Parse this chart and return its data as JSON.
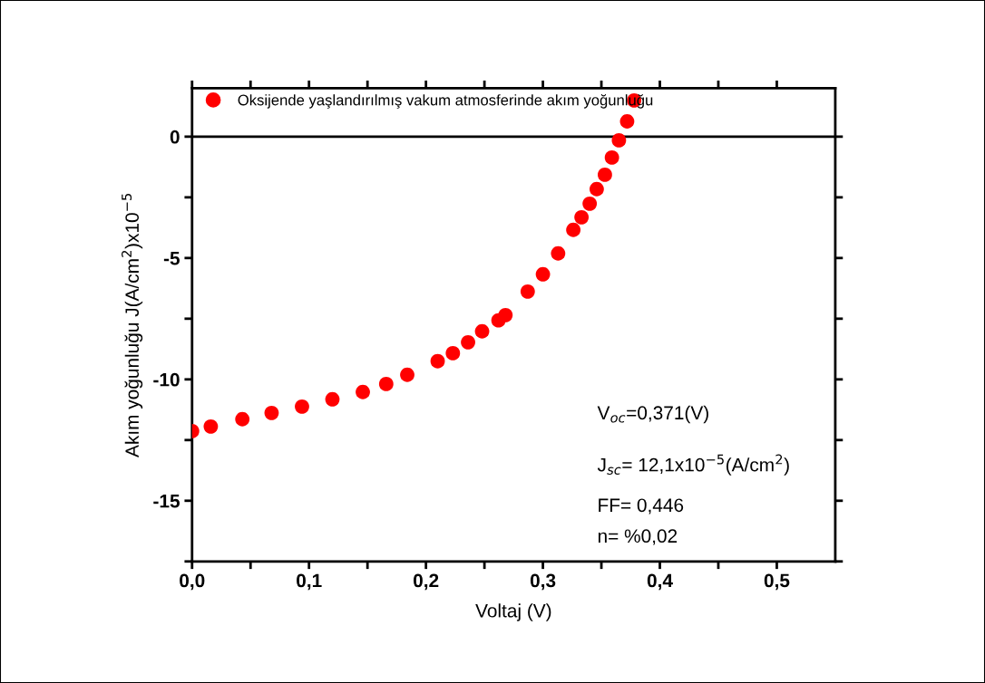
{
  "chart_data": {
    "type": "scatter",
    "xlabel": "Voltaj (V)",
    "ylabel": "Akım yoğunluğu J(A/cm$^{2}$)x10$^{−5}$",
    "x": [
      0,
      0.016,
      0.043,
      0.068,
      0.094,
      0.12,
      0.146,
      0.166,
      0.184,
      0.21,
      0.223,
      0.236,
      0.248,
      0.262,
      0.268,
      0.287,
      0.3,
      0.313,
      0.326,
      0.333,
      0.34,
      0.346,
      0.353,
      0.359,
      0.365,
      0.372,
      0.378
    ],
    "series": [
      {
        "name": "Oksijende yaşlandırılmış vakum atmosferinde akım yoğunluğu",
        "color": "#ff0000",
        "values": [
          -12.13,
          -11.94,
          -11.64,
          -11.38,
          -11.12,
          -10.82,
          -10.52,
          -10.19,
          -9.81,
          -9.25,
          -8.92,
          -8.47,
          -8.02,
          -7.57,
          -7.35,
          -6.38,
          -5.67,
          -4.81,
          -3.84,
          -3.32,
          -2.76,
          -2.16,
          -1.57,
          -0.86,
          -0.15,
          0.63,
          1.49
        ]
      }
    ],
    "marker": "circle",
    "legend": "top left",
    "grid": false,
    "xlim": [
      0,
      0.55
    ],
    "ylim": [
      -17.5,
      2
    ],
    "xticks": [
      {
        "value": 0,
        "label": "0,0"
      },
      {
        "value": 0.05,
        "label": null
      },
      {
        "value": 0.1,
        "label": "0,1"
      },
      {
        "value": 0.15,
        "label": null
      },
      {
        "value": 0.2,
        "label": "0,2"
      },
      {
        "value": 0.25,
        "label": null
      },
      {
        "value": 0.3,
        "label": "0,3"
      },
      {
        "value": 0.35,
        "label": null
      },
      {
        "value": 0.4,
        "label": "0,4"
      },
      {
        "value": 0.45,
        "label": null
      },
      {
        "value": 0.5,
        "label": "0,5"
      }
    ],
    "yticks": [
      {
        "value": -17.5,
        "label": null
      },
      -15,
      {
        "value": -12.5,
        "label": null
      },
      -10,
      {
        "value": -7.5,
        "label": null
      },
      -5,
      {
        "value": -2.5,
        "label": null
      },
      0
    ],
    "ref_lines": [
      {
        "axis": "y",
        "value": 0,
        "color": "#000000"
      }
    ],
    "annotations": [
      "V$_{oc}$=0,371(V)",
      "J$_{sc}$= 12,1x10$^{−5}$(A/cm$^{2}$)",
      "FF= 0,446",
      "n= %0,02"
    ]
  }
}
